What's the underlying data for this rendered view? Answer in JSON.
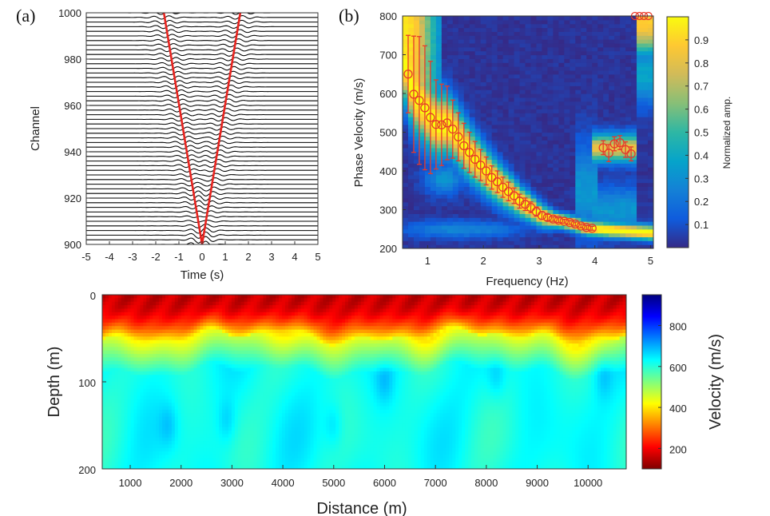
{
  "panels": {
    "a": "(a)",
    "b": "(b)"
  },
  "colors": {
    "wiggle": "#000000",
    "moveout_line": "#e8231e",
    "picks": "#e83a2a",
    "colormap_parula": [
      "#352a87",
      "#0f5cdd",
      "#1481d6",
      "#06a4ca",
      "#2eb7a4",
      "#87bf77",
      "#d1bb59",
      "#fec832",
      "#f9fb0e"
    ],
    "colormap_jet_reversed": [
      "#7f0000",
      "#ff0000",
      "#ff7f00",
      "#ffff00",
      "#7fff7f",
      "#00ffff",
      "#007fff",
      "#0000ff",
      "#00007f"
    ]
  },
  "chart_data": [
    {
      "type": "line",
      "panel": "(a)",
      "xlabel": "Time (s)",
      "ylabel": "Channel",
      "xlim": [
        -5,
        5
      ],
      "ylim": [
        900,
        1000
      ],
      "xticks": [
        -5,
        -4,
        -3,
        -2,
        -1,
        0,
        1,
        2,
        3,
        4,
        5
      ],
      "yticks": [
        900,
        920,
        940,
        960,
        980,
        1000
      ],
      "channel_step": 2,
      "moveout_lines": [
        {
          "name": "",
          "x": [
            0,
            -1.65
          ],
          "y": [
            900,
            1000
          ]
        },
        {
          "name": "",
          "x": [
            0,
            1.65
          ],
          "y": [
            900,
            1000
          ]
        }
      ]
    },
    {
      "type": "heatmap",
      "panel": "(b)",
      "xlabel": "Frequency (Hz)",
      "ylabel": "Phase Velocity (m/s)",
      "colorbar_label": "Normalized amp.",
      "xlim": [
        0.55,
        5.05
      ],
      "ylim": [
        200,
        800
      ],
      "xticks": [
        1,
        2,
        3,
        4,
        5
      ],
      "yticks": [
        200,
        300,
        400,
        500,
        600,
        700,
        800
      ],
      "colorbar_ticks": [
        0.1,
        0.2,
        0.3,
        0.4,
        0.5,
        0.6,
        0.7,
        0.8,
        0.9
      ],
      "dispersion_picks": {
        "x": [
          0.65,
          0.75,
          0.85,
          0.95,
          1.05,
          1.15,
          1.25,
          1.35,
          1.45,
          1.55,
          1.65,
          1.75,
          1.85,
          1.95,
          2.05,
          2.15,
          2.25,
          2.35,
          2.45,
          2.55,
          2.65,
          2.75,
          2.85,
          2.95,
          3.05,
          3.15,
          3.25,
          3.35,
          3.45,
          3.55,
          3.65,
          3.75,
          3.85,
          3.95
        ],
        "y": [
          650,
          598,
          582,
          563,
          538,
          520,
          519,
          524,
          508,
          488,
          465,
          448,
          430,
          415,
          400,
          383,
          372,
          358,
          347,
          336,
          322,
          314,
          306,
          295,
          285,
          280,
          276,
          273,
          270,
          267,
          263,
          258,
          254,
          252
        ],
        "err": [
          100,
          150,
          165,
          160,
          145,
          115,
          105,
          95,
          75,
          62,
          58,
          52,
          46,
          40,
          36,
          30,
          28,
          26,
          24,
          20,
          18,
          16,
          14,
          12,
          10,
          8,
          6,
          6,
          5,
          5,
          5,
          5,
          5,
          5
        ]
      },
      "secondary_picks": {
        "x": [
          4.15,
          4.25,
          4.35,
          4.45,
          4.55,
          4.65
        ],
        "y": [
          460,
          446,
          470,
          473,
          455,
          444
        ],
        "err": [
          18,
          22,
          18,
          18,
          20,
          18
        ]
      },
      "edge_picks": {
        "x": [
          4.72,
          4.8,
          4.88,
          4.96
        ],
        "y": [
          800,
          800,
          800,
          800
        ]
      }
    },
    {
      "type": "heatmap",
      "panel": "",
      "xlabel": "Distance (m)",
      "ylabel": "Depth (m)",
      "colorbar_label": "Velocity (m/s)",
      "xlim": [
        450,
        10750
      ],
      "ylim": [
        0,
        200
      ],
      "xticks": [
        1000,
        2000,
        3000,
        4000,
        5000,
        6000,
        7000,
        8000,
        9000,
        10000
      ],
      "yticks": [
        0,
        100,
        200
      ],
      "colorbar_ticks": [
        200,
        400,
        600,
        800
      ],
      "colorbar_range": [
        100,
        950
      ]
    }
  ]
}
